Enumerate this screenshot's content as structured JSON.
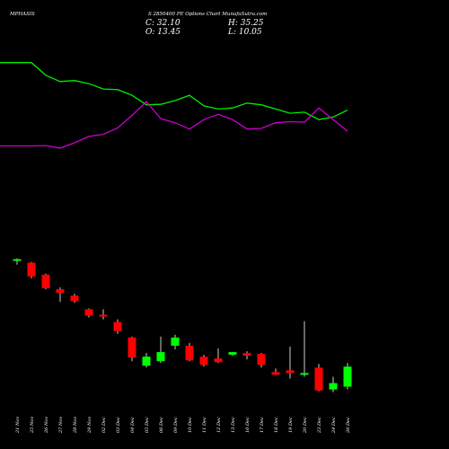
{
  "header": {
    "symbol": "MPHASIS",
    "subtitle": "S 2850400 PE Options Chart MunafaSutra.com",
    "close_label": "C: 32.10",
    "high_label": "H: 35.25",
    "open_label": "O: 13.45",
    "low_label": "L: 10.05"
  },
  "colors": {
    "background": "#000000",
    "up": "#00ff00",
    "down": "#ff0000",
    "line_green": "#00ee00",
    "line_magenta": "#cc00cc",
    "wick": "#ffffff"
  },
  "chart_data": {
    "type": "candlestick",
    "categories": [
      "21 Nov",
      "25 Nov",
      "26 Nov",
      "27 Nov",
      "28 Nov",
      "29 Nov",
      "02 Dec",
      "03 Dec",
      "04 Dec",
      "05 Dec",
      "06 Dec",
      "09 Dec",
      "10 Dec",
      "11 Dec",
      "12 Dec",
      "13 Dec",
      "16 Dec",
      "17 Dec",
      "18 Dec",
      "19 Dec",
      "20 Dec",
      "23 Dec",
      "24 Dec",
      "26 Dec"
    ],
    "ohlc_scale": [
      0,
      100
    ],
    "candles": [
      {
        "open": 80.0,
        "high": 81.5,
        "low": 78.0,
        "close": 81.0
      },
      {
        "open": 79.0,
        "high": 79.5,
        "low": 70.5,
        "close": 71.5
      },
      {
        "open": 72.5,
        "high": 73.0,
        "low": 64.5,
        "close": 65.0
      },
      {
        "open": 64.5,
        "high": 65.5,
        "low": 57.5,
        "close": 62.5
      },
      {
        "open": 61.0,
        "high": 62.0,
        "low": 57.0,
        "close": 58.0
      },
      {
        "open": 53.5,
        "high": 54.0,
        "low": 49.0,
        "close": 50.0
      },
      {
        "open": 50.5,
        "high": 53.5,
        "low": 48.0,
        "close": 49.5
      },
      {
        "open": 46.5,
        "high": 48.0,
        "low": 40.0,
        "close": 41.5
      },
      {
        "open": 38.0,
        "high": 38.5,
        "low": 25.0,
        "close": 27.0
      },
      {
        "open": 22.5,
        "high": 29.5,
        "low": 21.5,
        "close": 27.5
      },
      {
        "open": 25.0,
        "high": 38.5,
        "low": 24.0,
        "close": 30.0
      },
      {
        "open": 33.5,
        "high": 39.5,
        "low": 31.5,
        "close": 38.0
      },
      {
        "open": 33.5,
        "high": 35.0,
        "low": 25.0,
        "close": 25.5
      },
      {
        "open": 27.5,
        "high": 28.5,
        "low": 22.0,
        "close": 23.0
      },
      {
        "open": 26.5,
        "high": 32.0,
        "low": 24.0,
        "close": 24.5
      },
      {
        "open": 28.5,
        "high": 30.0,
        "low": 28.0,
        "close": 30.0
      },
      {
        "open": 29.5,
        "high": 30.5,
        "low": 26.0,
        "close": 28.0
      },
      {
        "open": 29.0,
        "high": 29.5,
        "low": 21.5,
        "close": 23.0
      },
      {
        "open": 19.0,
        "high": 21.0,
        "low": 17.5,
        "close": 17.5
      },
      {
        "open": 20.0,
        "high": 33.0,
        "low": 15.5,
        "close": 18.5
      },
      {
        "open": 17.5,
        "high": 47.0,
        "low": 16.5,
        "close": 18.5
      },
      {
        "open": 21.5,
        "high": 23.5,
        "low": 8.5,
        "close": 9.0
      },
      {
        "open": 9.5,
        "high": 16.5,
        "low": 8.0,
        "close": 13.0
      },
      {
        "open": 11.0,
        "high": 24.0,
        "low": 9.5,
        "close": 22.0
      }
    ],
    "series": [
      {
        "values": [
          98.0,
          98.0,
          92.0,
          89.0,
          89.5,
          88.0,
          85.5,
          85.2,
          82.5,
          78.0,
          78.2,
          80.0,
          82.5,
          77.5,
          76.0,
          76.5,
          78.8,
          78.0,
          76.0,
          74.0,
          74.5,
          71.0,
          72.2,
          75.5
        ]
      },
      {
        "values": [
          58.5,
          58.5,
          58.7,
          57.5,
          60.0,
          63.0,
          64.0,
          67.0,
          73.0,
          79.5,
          71.5,
          69.5,
          66.5,
          71.0,
          73.5,
          71.0,
          66.5,
          66.8,
          69.5,
          70.0,
          69.8,
          76.5,
          71.0,
          65.5
        ]
      }
    ],
    "xlabel": "",
    "ylabel": ""
  }
}
